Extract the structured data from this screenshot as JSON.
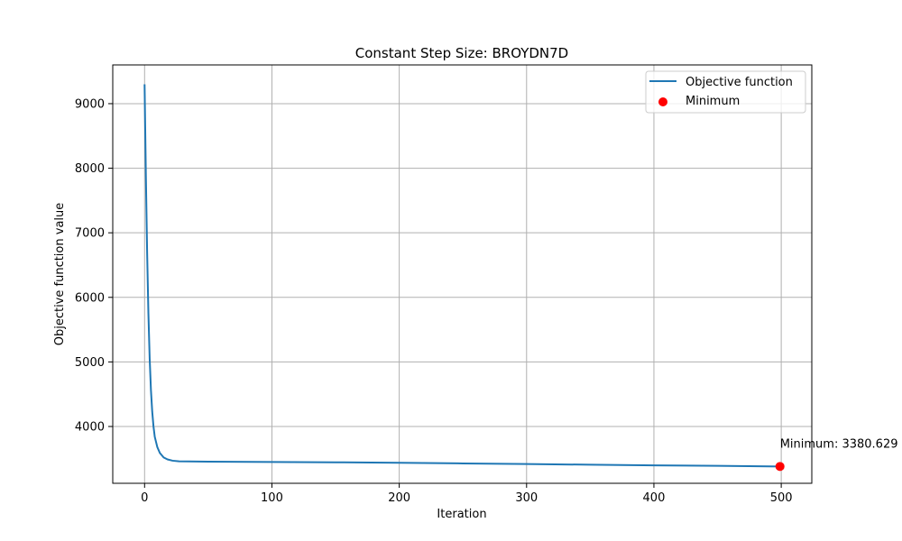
{
  "chart_data": {
    "type": "line",
    "title": "Constant Step Size: BROYDN7D",
    "xlabel": "Iteration",
    "ylabel": "Objective function value",
    "xlim": [
      -25,
      524
    ],
    "ylim": [
      3120,
      9600
    ],
    "xticks": [
      0,
      100,
      200,
      300,
      400,
      500
    ],
    "yticks": [
      4000,
      5000,
      6000,
      7000,
      8000,
      9000
    ],
    "grid": true,
    "legend_position": "top-right",
    "colors": {
      "line": "#1f77b4",
      "minimum": "#ff0000",
      "grid": "#b0b0b0"
    },
    "series": [
      {
        "name": "Objective function",
        "x": [
          0,
          1,
          2,
          3,
          4,
          5,
          6,
          7,
          8,
          10,
          12,
          15,
          18,
          22,
          27,
          35,
          50,
          100,
          150,
          200,
          250,
          300,
          350,
          400,
          450,
          499
        ],
        "y": [
          9300,
          7900,
          6700,
          5750,
          5050,
          4560,
          4230,
          4000,
          3840,
          3680,
          3590,
          3520,
          3490,
          3470,
          3460,
          3458,
          3455,
          3450,
          3445,
          3437,
          3428,
          3418,
          3408,
          3398,
          3390,
          3380.629
        ]
      },
      {
        "name": "Minimum",
        "type": "scatter",
        "x": [
          499
        ],
        "y": [
          3380.629
        ]
      }
    ],
    "annotations": [
      {
        "text": "Minimum: 3380.629",
        "x": 499,
        "y": 3380.629
      }
    ]
  }
}
